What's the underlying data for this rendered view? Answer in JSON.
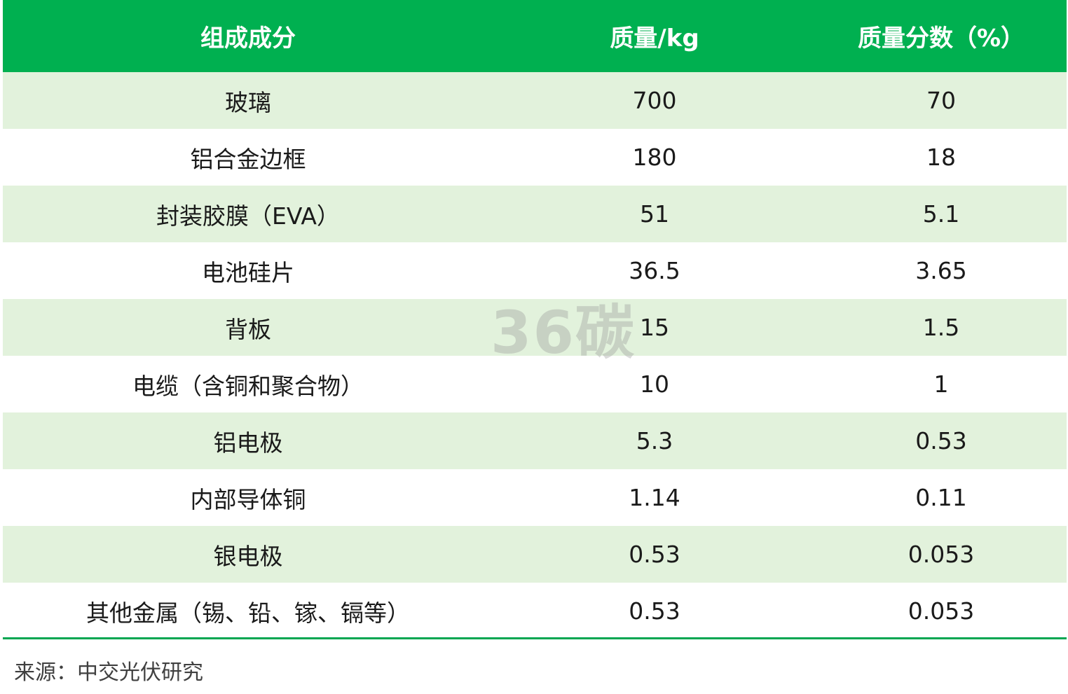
{
  "table": {
    "headers": [
      "组成成分",
      "质量/kg",
      "质量分数（%）"
    ],
    "rows": [
      [
        "玻璃",
        "700",
        "70"
      ],
      [
        "铝合金边框",
        "180",
        "18"
      ],
      [
        "封装胶膜（EVA）",
        "51",
        "5.1"
      ],
      [
        "电池硅片",
        "36.5",
        "3.65"
      ],
      [
        "背板",
        "15",
        "1.5"
      ],
      [
        "电缆（含铜和聚合物）",
        "10",
        "1"
      ],
      [
        "铝电极",
        "5.3",
        "0.53"
      ],
      [
        "内部导体铜",
        "1.14",
        "0.11"
      ],
      [
        "银电极",
        "0.53",
        "0.053"
      ],
      [
        "其他金属（锡、铅、镓、镉等）",
        "0.53",
        "0.053"
      ]
    ]
  },
  "source": "来源：中交光伏研究",
  "watermark": "36碳",
  "colors": {
    "header_bg": "#00b050",
    "stripe_bg": "#e2f2dc",
    "rule": "#00a651"
  }
}
